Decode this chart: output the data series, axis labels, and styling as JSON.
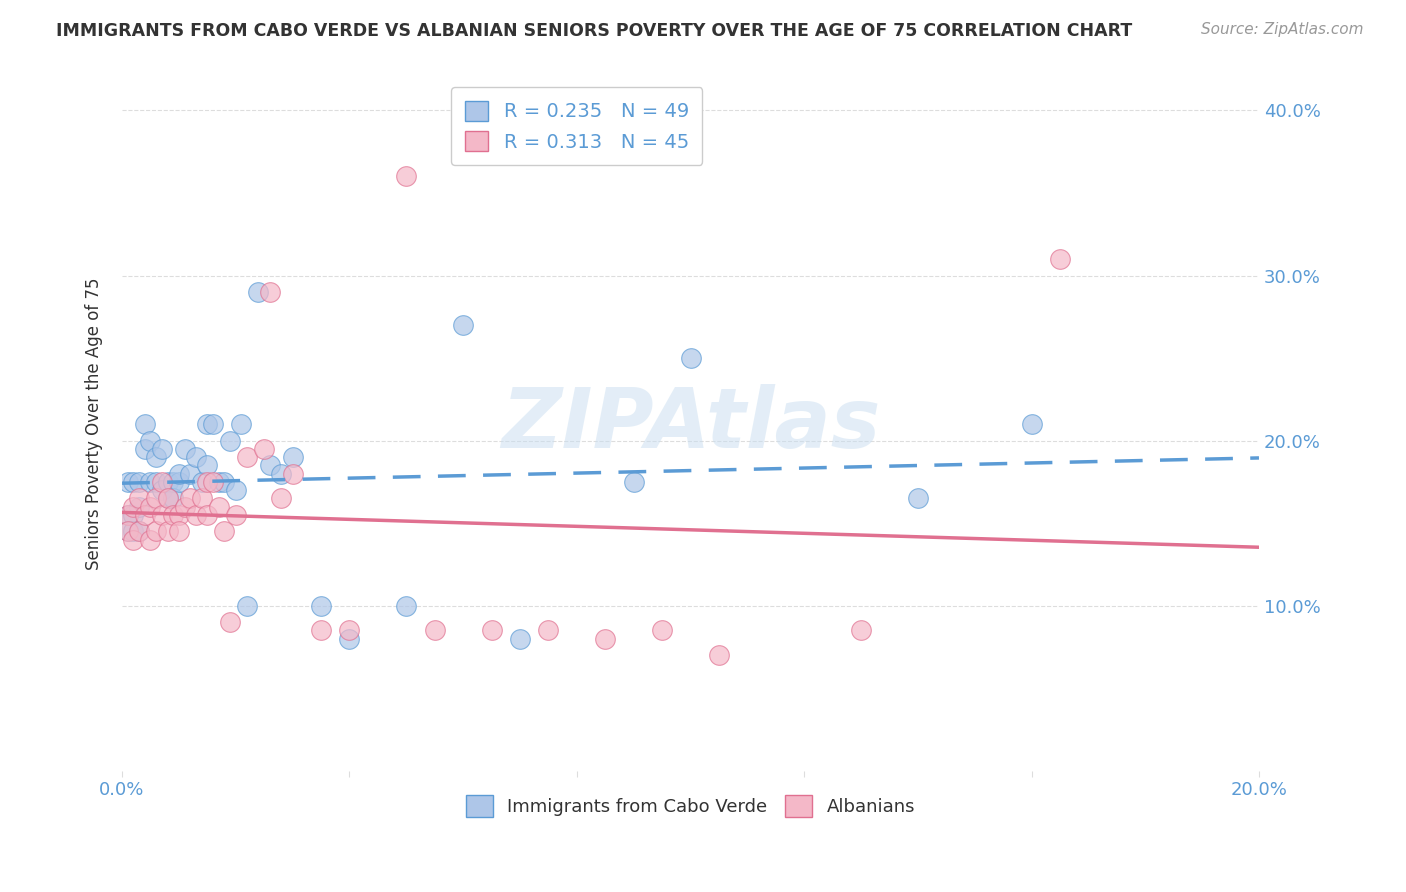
{
  "title": "IMMIGRANTS FROM CABO VERDE VS ALBANIAN SENIORS POVERTY OVER THE AGE OF 75 CORRELATION CHART",
  "source": "Source: ZipAtlas.com",
  "ylabel": "Seniors Poverty Over the Age of 75",
  "xlim": [
    0.0,
    0.2
  ],
  "ylim": [
    0.0,
    0.42
  ],
  "yticks": [
    0.1,
    0.2,
    0.3,
    0.4
  ],
  "ytick_labels": [
    "10.0%",
    "20.0%",
    "30.0%",
    "40.0%"
  ],
  "xticks": [
    0.0,
    0.04,
    0.08,
    0.12,
    0.16,
    0.2
  ],
  "xtick_labels": [
    "0.0%",
    "",
    "",
    "",
    "",
    "20.0%"
  ],
  "cabo_verde_color": "#aec6e8",
  "albanians_color": "#f4b8c8",
  "cabo_verde_edge_color": "#5b9bd5",
  "albanians_edge_color": "#e07090",
  "cabo_verde_line_color": "#5b9bd5",
  "albanians_line_color": "#e07090",
  "cabo_verde_R": 0.235,
  "cabo_verde_N": 49,
  "albanians_R": 0.313,
  "albanians_N": 45,
  "watermark": "ZIPAtlas",
  "cabo_verde_x": [
    0.001,
    0.001,
    0.001,
    0.002,
    0.002,
    0.002,
    0.003,
    0.003,
    0.003,
    0.004,
    0.004,
    0.005,
    0.005,
    0.006,
    0.006,
    0.007,
    0.007,
    0.008,
    0.008,
    0.009,
    0.009,
    0.01,
    0.01,
    0.011,
    0.012,
    0.013,
    0.014,
    0.015,
    0.015,
    0.016,
    0.017,
    0.018,
    0.019,
    0.02,
    0.021,
    0.022,
    0.024,
    0.026,
    0.028,
    0.03,
    0.035,
    0.04,
    0.05,
    0.06,
    0.07,
    0.09,
    0.1,
    0.14,
    0.16
  ],
  "cabo_verde_y": [
    0.175,
    0.155,
    0.145,
    0.175,
    0.155,
    0.145,
    0.175,
    0.16,
    0.145,
    0.21,
    0.195,
    0.2,
    0.175,
    0.19,
    0.175,
    0.195,
    0.17,
    0.175,
    0.165,
    0.175,
    0.165,
    0.175,
    0.18,
    0.195,
    0.18,
    0.19,
    0.175,
    0.185,
    0.21,
    0.21,
    0.175,
    0.175,
    0.2,
    0.17,
    0.21,
    0.1,
    0.29,
    0.185,
    0.18,
    0.19,
    0.1,
    0.08,
    0.1,
    0.27,
    0.08,
    0.175,
    0.25,
    0.165,
    0.21
  ],
  "albanians_x": [
    0.001,
    0.001,
    0.002,
    0.002,
    0.003,
    0.003,
    0.004,
    0.005,
    0.005,
    0.006,
    0.006,
    0.007,
    0.007,
    0.008,
    0.008,
    0.009,
    0.01,
    0.01,
    0.011,
    0.012,
    0.013,
    0.014,
    0.015,
    0.015,
    0.016,
    0.017,
    0.018,
    0.019,
    0.02,
    0.022,
    0.025,
    0.026,
    0.028,
    0.03,
    0.035,
    0.04,
    0.05,
    0.055,
    0.065,
    0.075,
    0.085,
    0.095,
    0.105,
    0.13,
    0.165
  ],
  "albanians_y": [
    0.155,
    0.145,
    0.16,
    0.14,
    0.165,
    0.145,
    0.155,
    0.16,
    0.14,
    0.165,
    0.145,
    0.175,
    0.155,
    0.165,
    0.145,
    0.155,
    0.155,
    0.145,
    0.16,
    0.165,
    0.155,
    0.165,
    0.175,
    0.155,
    0.175,
    0.16,
    0.145,
    0.09,
    0.155,
    0.19,
    0.195,
    0.29,
    0.165,
    0.18,
    0.085,
    0.085,
    0.36,
    0.085,
    0.085,
    0.085,
    0.08,
    0.085,
    0.07,
    0.085,
    0.31
  ],
  "background_color": "#ffffff",
  "grid_color": "#dddddd",
  "title_color": "#333333",
  "axis_label_color": "#5b9bd5",
  "legend_border_color": "#cccccc"
}
